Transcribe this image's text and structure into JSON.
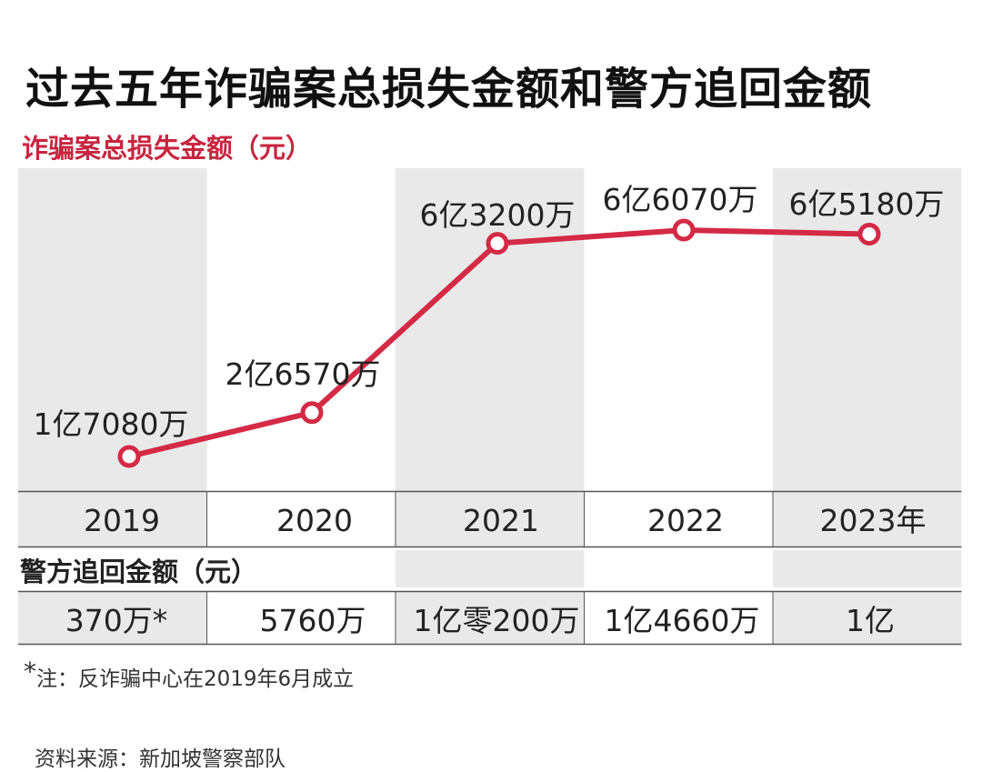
{
  "title": "过去五年诈骗案总损失金额和警方追回金额",
  "chart_data": {
    "type": "line",
    "title": "过去五年诈骗案总损失金额和警方追回金额",
    "series_label": "诈骗案总损失金额（元）",
    "categories": [
      "2019",
      "2020",
      "2021",
      "2022",
      "2023年"
    ],
    "series": [
      {
        "name": "诈骗案总损失金额（元）",
        "values": [
          170800000,
          265700000,
          632000000,
          660700000,
          651800000
        ],
        "labels": [
          "1亿7080万",
          "2亿6570万",
          "6亿3200万",
          "6亿6070万",
          "6亿5180万"
        ]
      }
    ],
    "recovered": {
      "label": "警方追回金额（元）",
      "values": [
        3700000,
        57600000,
        102000000,
        146600000,
        100000000
      ],
      "labels": [
        "370万*",
        "5760万",
        "1亿零200万",
        "1亿4660万",
        "1亿"
      ]
    },
    "ylim": [
      0,
      700000000
    ],
    "grid": false,
    "line_color": "#d42a45",
    "band_color": "#e9e9e9"
  },
  "note": {
    "mark": "*",
    "text": "注：反诈骗中心在2019年6月成立"
  },
  "source": "资料来源：新加坡警察部队"
}
